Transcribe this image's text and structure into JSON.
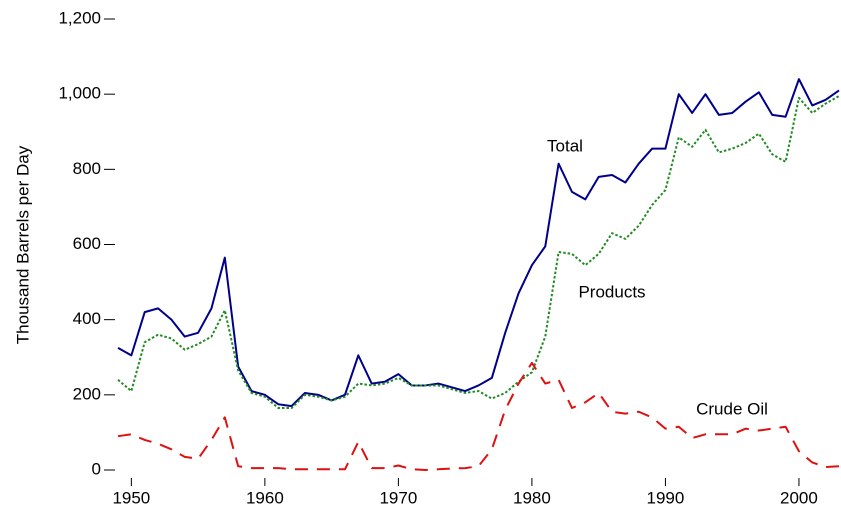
{
  "chart_data": {
    "type": "line",
    "ylabel": "Thousand Barrels per Day",
    "x": [
      1949,
      1950,
      1951,
      1952,
      1953,
      1954,
      1955,
      1956,
      1957,
      1958,
      1959,
      1960,
      1961,
      1962,
      1963,
      1964,
      1965,
      1966,
      1967,
      1968,
      1969,
      1970,
      1971,
      1972,
      1973,
      1974,
      1975,
      1976,
      1977,
      1978,
      1979,
      1980,
      1981,
      1982,
      1983,
      1984,
      1985,
      1986,
      1987,
      1988,
      1989,
      1990,
      1991,
      1992,
      1993,
      1994,
      1995,
      1996,
      1997,
      1998,
      1999,
      2000,
      2001,
      2002,
      2003
    ],
    "series": [
      {
        "name": "Total",
        "color": "#00008b",
        "style": "solid",
        "values": [
          325,
          305,
          420,
          430,
          400,
          355,
          365,
          430,
          565,
          275,
          210,
          200,
          175,
          170,
          205,
          200,
          185,
          200,
          305,
          230,
          235,
          255,
          225,
          225,
          230,
          220,
          210,
          225,
          245,
          365,
          470,
          545,
          595,
          815,
          740,
          720,
          780,
          785,
          765,
          815,
          855,
          855,
          1000,
          950,
          1000,
          945,
          950,
          980,
          1005,
          945,
          940,
          1040,
          970,
          985,
          1010
        ]
      },
      {
        "name": "Products",
        "color": "#228b22",
        "style": "dotted",
        "values": [
          240,
          210,
          340,
          360,
          350,
          320,
          335,
          355,
          425,
          265,
          205,
          195,
          165,
          165,
          200,
          195,
          185,
          195,
          230,
          225,
          230,
          245,
          225,
          225,
          225,
          215,
          205,
          210,
          190,
          205,
          235,
          260,
          355,
          580,
          575,
          545,
          575,
          630,
          615,
          650,
          705,
          745,
          885,
          860,
          905,
          845,
          855,
          870,
          895,
          840,
          820,
          990,
          950,
          975,
          995
        ]
      },
      {
        "name": "Crude Oil",
        "color": "#dd1111",
        "style": "dashed",
        "values": [
          90,
          95,
          80,
          70,
          55,
          35,
          30,
          80,
          140,
          10,
          5,
          5,
          5,
          2,
          2,
          2,
          2,
          2,
          75,
          5,
          5,
          12,
          2,
          0,
          2,
          4,
          5,
          10,
          55,
          160,
          230,
          285,
          230,
          240,
          165,
          180,
          205,
          155,
          150,
          155,
          140,
          110,
          115,
          85,
          95,
          95,
          95,
          110,
          105,
          110,
          115,
          50,
          20,
          8,
          10
        ]
      }
    ],
    "xlim": [
      1949,
      2003
    ],
    "xticks": [
      1950,
      1960,
      1970,
      1980,
      1990,
      2000
    ],
    "ylim": [
      0,
      1200
    ],
    "yticks": [
      0,
      200,
      400,
      600,
      800,
      {
        "value": 1000,
        "label": "1,000"
      },
      {
        "value": 1200,
        "label": "1,200"
      }
    ],
    "grid": false,
    "legend": false
  }
}
